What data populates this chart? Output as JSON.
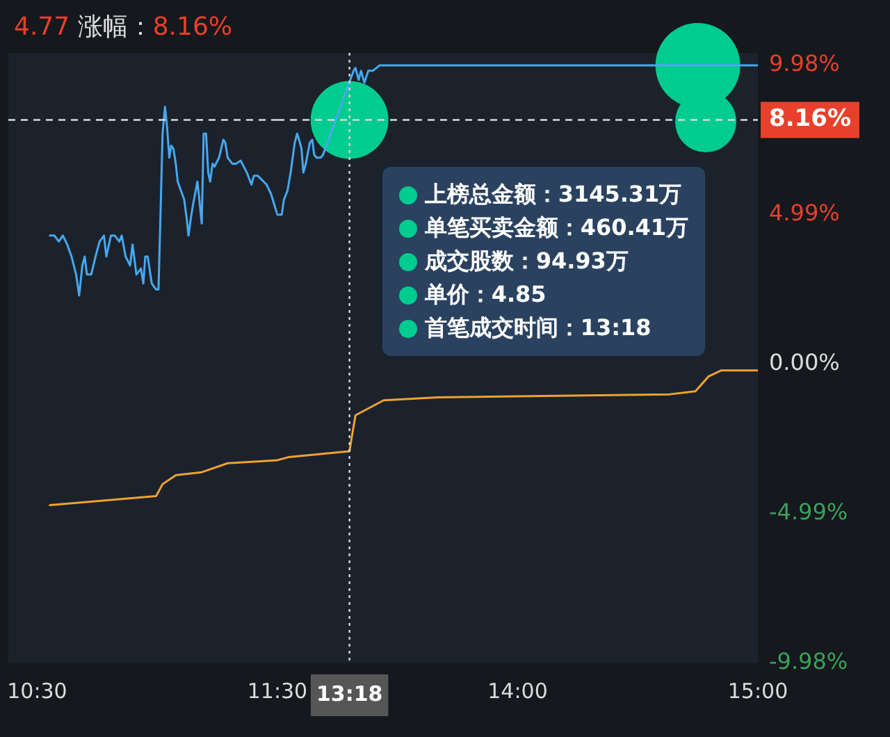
{
  "chart_data": [
    {
      "type": "line",
      "title": "4.77 涨幅：8.16%",
      "xlim": [
        10.38,
        11.5
      ],
      "xticks": [
        {
          "value": 10.5,
          "label": "10:30"
        },
        {
          "value": 11.5,
          "label": "11:30"
        }
      ],
      "ylim": [
        -9.98,
        10.4
      ],
      "tick_labels": "x",
      "series": [
        {
          "color": "#47a8ee",
          "x": [
            10.553,
            10.572,
            10.59,
            10.607,
            10.625,
            10.643,
            10.662,
            10.675,
            10.688,
            10.698,
            10.707,
            10.725,
            10.743,
            10.76,
            10.778,
            10.788,
            10.807,
            10.823,
            10.842,
            10.852,
            10.868,
            10.887,
            10.897,
            10.913,
            10.932,
            10.942,
            10.95,
            10.96,
            10.977,
            10.995,
            11.005,
            11.013,
            11.022,
            11.032,
            11.04,
            11.05,
            11.058,
            11.067,
            11.077,
            11.085,
            11.103,
            11.112,
            11.122,
            11.13,
            11.14,
            11.148,
            11.167,
            11.175,
            11.185,
            11.193,
            11.203,
            11.212,
            11.22,
            11.23,
            11.238,
            11.257,
            11.275,
            11.283,
            11.293,
            11.312,
            11.328,
            11.347,
            11.373,
            11.392,
            11.402,
            11.418,
            11.455,
            11.473,
            11.492,
            11.5
          ],
          "values": [
            4.3,
            4.3,
            4.1,
            4.3,
            4.0,
            3.6,
            3.0,
            2.3,
            3.3,
            3.6,
            3.0,
            3.0,
            3.6,
            4.1,
            4.3,
            3.6,
            4.3,
            4.3,
            4.1,
            4.3,
            3.6,
            3.3,
            4.0,
            3.0,
            3.2,
            2.7,
            3.6,
            3.6,
            2.7,
            2.5,
            2.5,
            4.9,
            7.7,
            8.6,
            8.0,
            6.9,
            7.3,
            7.2,
            6.7,
            6.1,
            5.7,
            5.5,
            4.9,
            4.3,
            4.9,
            5.3,
            6.1,
            5.5,
            4.7,
            7.7,
            7.7,
            6.4,
            6.1,
            6.7,
            6.6,
            6.9,
            7.5,
            7.4,
            6.9,
            6.7,
            6.7,
            6.8,
            6.4,
            6.0,
            6.3,
            6.3,
            6.0,
            5.7,
            5.2,
            5.0
          ]
        },
        {
          "color": "#f0a22e",
          "x": [
            10.553,
            10.995,
            11.022,
            11.077,
            11.185,
            11.293,
            11.5
          ],
          "values": [
            -4.7,
            -4.4,
            -4.0,
            -3.7,
            -3.6,
            -3.3,
            -3.2
          ]
        }
      ],
      "ref_lines": [
        {
          "axis": "y",
          "value": 8.16,
          "color": "#d9d9d9",
          "line_style": "dashed"
        }
      ]
    },
    {
      "type": "line",
      "xlim": [
        13,
        15
      ],
      "xticks": [
        {
          "value": 14,
          "label": "14:00"
        },
        {
          "value": 15,
          "label": "15:00"
        }
      ],
      "ylim": [
        -9.98,
        10.4
      ],
      "yticks": [
        {
          "value": 9.98,
          "label": "9.98%"
        },
        {
          "value": 4.99,
          "label": "4.99%"
        },
        {
          "value": 0,
          "label": "0.00%"
        },
        {
          "value": -4.99,
          "label": "-4.99%"
        },
        {
          "value": -9.98,
          "label": "-9.98%"
        }
      ],
      "series": [
        {
          "color": "#47a8ee",
          "x": [
            13,
            13.018,
            13.027,
            13.042,
            13.055,
            13.072,
            13.082,
            13.09,
            13.1,
            13.108,
            13.118,
            13.135,
            13.145,
            13.153,
            13.163,
            13.18,
            13.19,
            13.317,
            13.325,
            13.338,
            13.348,
            13.362,
            13.378,
            13.397,
            13.425,
            15
          ],
          "values": [
            5.0,
            5.0,
            5.5,
            5.8,
            6.4,
            7.4,
            7.7,
            7.5,
            7.2,
            6.4,
            6.7,
            7.4,
            7.5,
            7.0,
            6.9,
            6.9,
            7.0,
            9.8,
            9.9,
            9.5,
            9.8,
            9.4,
            9.8,
            9.8,
            9.98,
            9.98
          ]
        },
        {
          "color": "#f0a22e",
          "x": [
            13,
            13.045,
            13.3,
            13.31,
            13.325,
            13.442,
            13.667,
            14.633,
            14.74,
            14.795,
            14.848,
            15
          ],
          "values": [
            -3.2,
            -3.1,
            -2.9,
            -2.4,
            -1.7,
            -1.2,
            -1.1,
            -1.0,
            -0.9,
            -0.4,
            -0.2,
            -0.2
          ]
        },
        {
          "type": "bubble",
          "color": "#00cc8f",
          "x": [
            13.3,
            14.75,
            14.783
          ],
          "values": [
            8.16,
            9.98,
            8.1
          ],
          "sizes": [
            0.84,
            1,
            0.52
          ]
        }
      ],
      "ref_lines": [
        {
          "axis": "x",
          "value": 13.3,
          "label": "13:18",
          "color": "#d9d9d9",
          "line_style": "dotted"
        },
        {
          "axis": "y",
          "value": 8.16,
          "label": "8.16%",
          "color": "#d9d9d9",
          "line_style": "dashed"
        }
      ],
      "annotations": [
        "上榜总金额：3145.31万",
        "单笔买卖金额：460.41万",
        "成交股数：94.93万",
        "单价：4.85",
        "首笔成交时间：13:18"
      ]
    }
  ]
}
